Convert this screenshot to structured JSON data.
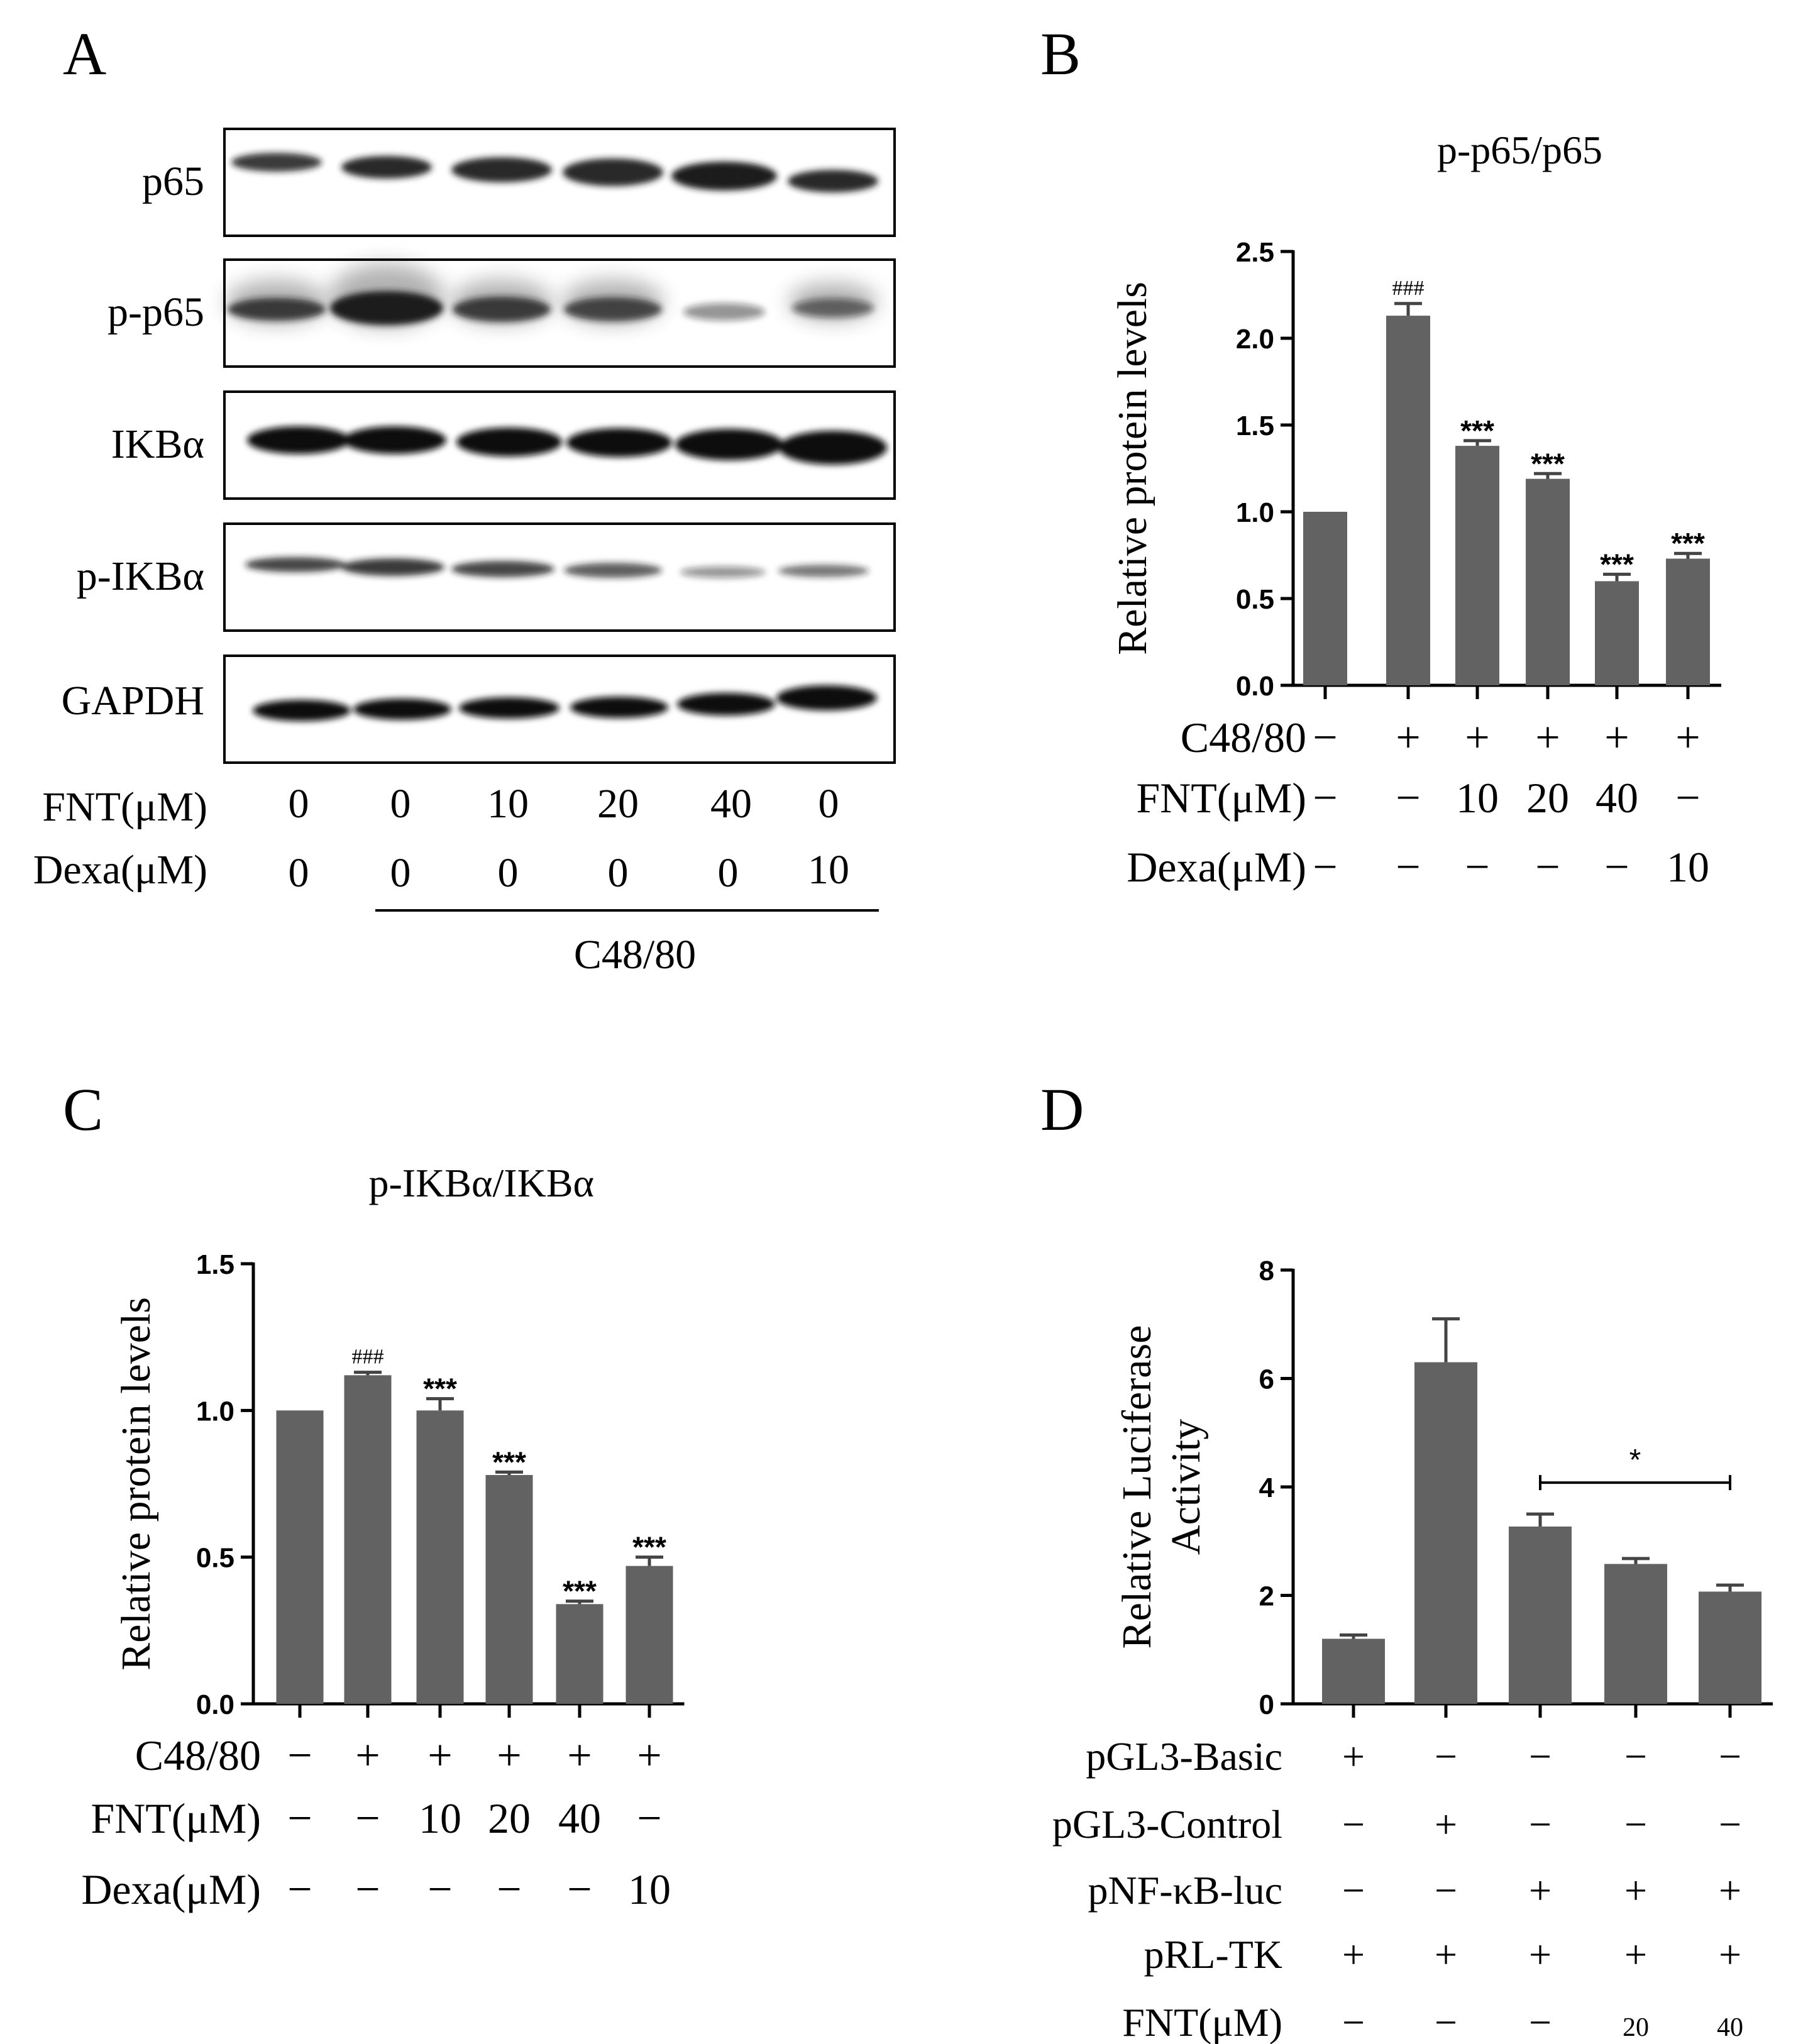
{
  "panels": {
    "A": {
      "label": "A",
      "blot_labels": [
        "p65",
        "p-p65",
        "IKBα",
        "p-IKBα",
        "GAPDH"
      ],
      "condition_rows": [
        {
          "label": "FNT(μM)",
          "values": [
            "0",
            "0",
            "10",
            "20",
            "40",
            "0"
          ]
        },
        {
          "label": "Dexa(μM)",
          "values": [
            "0",
            "0",
            "0",
            "0",
            "0",
            "10"
          ]
        }
      ],
      "group_label": "C48/80"
    },
    "B": {
      "label": "B"
    },
    "C": {
      "label": "C"
    },
    "D": {
      "label": "D"
    }
  },
  "chart_data": [
    {
      "panel": "B",
      "type": "bar",
      "title": "p-p65/p65",
      "ylabel": "Relative protein levels",
      "ylim": [
        0,
        2.5
      ],
      "yticks": [
        "0.0",
        "0.5",
        "1.0",
        "1.5",
        "2.0",
        "2.5"
      ],
      "values": [
        1.0,
        2.13,
        1.38,
        1.19,
        0.6,
        0.73
      ],
      "errors": [
        0,
        0.07,
        0.03,
        0.03,
        0.04,
        0.03
      ],
      "annotations": [
        "",
        "###",
        "***",
        "***",
        "***",
        "***"
      ],
      "conditions": [
        {
          "label": "C48/80",
          "values": [
            "−",
            "+",
            "+",
            "+",
            "+",
            "+"
          ]
        },
        {
          "label": "FNT(μM)",
          "values": [
            "−",
            "−",
            "10",
            "20",
            "40",
            "−"
          ]
        },
        {
          "label": "Dexa(μM)",
          "values": [
            "−",
            "−",
            "−",
            "−",
            "−",
            "10"
          ]
        }
      ],
      "bar_color": "#626262"
    },
    {
      "panel": "C",
      "type": "bar",
      "title": "p-IKBα/IKBα",
      "ylabel": "Relative protein levels",
      "ylim": [
        0,
        1.5
      ],
      "yticks": [
        "0.0",
        "0.5",
        "1.0",
        "1.5"
      ],
      "values": [
        1.0,
        1.12,
        1.0,
        0.78,
        0.34,
        0.47
      ],
      "errors": [
        0,
        0.01,
        0.04,
        0.01,
        0.01,
        0.03
      ],
      "annotations": [
        "",
        "###",
        "***",
        "***",
        "***",
        "***"
      ],
      "conditions": [
        {
          "label": "C48/80",
          "values": [
            "−",
            "+",
            "+",
            "+",
            "+",
            "+"
          ]
        },
        {
          "label": "FNT(μM)",
          "values": [
            "−",
            "−",
            "10",
            "20",
            "40",
            "−"
          ]
        },
        {
          "label": "Dexa(μM)",
          "values": [
            "−",
            "−",
            "−",
            "−",
            "−",
            "10"
          ]
        }
      ],
      "bar_color": "#626262"
    },
    {
      "panel": "D",
      "type": "bar",
      "title": "",
      "ylabel": "Relative Luciferase Activity",
      "ylim": [
        0,
        8
      ],
      "yticks": [
        "0",
        "2",
        "4",
        "6",
        "8"
      ],
      "values": [
        1.2,
        6.3,
        3.27,
        2.58,
        2.07
      ],
      "errors": [
        0.07,
        0.8,
        0.23,
        0.1,
        0.12
      ],
      "annotations": [
        "",
        "",
        "",
        "",
        ""
      ],
      "bracket": {
        "from": 2,
        "to": 4,
        "y": 4.08,
        "label": "*"
      },
      "conditions": [
        {
          "label": "pGL3-Basic",
          "values": [
            "+",
            "−",
            "−",
            "−",
            "−"
          ]
        },
        {
          "label": "pGL3-Control",
          "values": [
            "−",
            "+",
            "−",
            "−",
            "−"
          ]
        },
        {
          "label": "pNF-κB-luc",
          "values": [
            "−",
            "−",
            "+",
            "+",
            "+"
          ]
        },
        {
          "label": "pRL-TK",
          "values": [
            "+",
            "+",
            "+",
            "+",
            "+"
          ]
        },
        {
          "label": "FNT(μM)",
          "values": [
            "−",
            "−",
            "−",
            "20",
            "40"
          ]
        }
      ],
      "bar_color": "#626262"
    }
  ]
}
